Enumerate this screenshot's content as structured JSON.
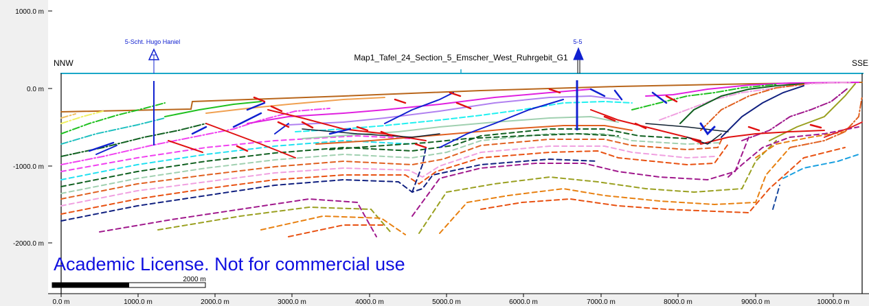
{
  "section": {
    "title": "Map1_Tafel_24_Section_5_Emscher_West_Ruhrgebit_G1",
    "left_direction": "NNW",
    "right_direction": "SSE"
  },
  "wells": [
    {
      "label": "5-Scht. Hugo Haniel",
      "x": 1200
    },
    {
      "label": "5-5",
      "x": 6720
    }
  ],
  "axes": {
    "y_ticks": [
      "1000.0 m",
      "0.0 m",
      "-1000.0 m",
      "-2000.0 m"
    ],
    "x_ticks": [
      "0.0 m",
      "1000.0 m",
      "2000.0 m",
      "3000.0 m",
      "4000.0 m",
      "5000.0 m",
      "6000.0 m",
      "7000.0 m",
      "8000.0 m",
      "9000.0 m",
      "10000.0 m"
    ]
  },
  "scale_bar": {
    "label": "2000 m"
  },
  "watermark": "Academic License. Not for commercial use",
  "colors": {
    "topography": "#b8651a",
    "section_line": "#1aa7c8",
    "faults_red": "#e01010",
    "faults_blue": "#1020d0",
    "watermark": "#1010e0"
  }
}
